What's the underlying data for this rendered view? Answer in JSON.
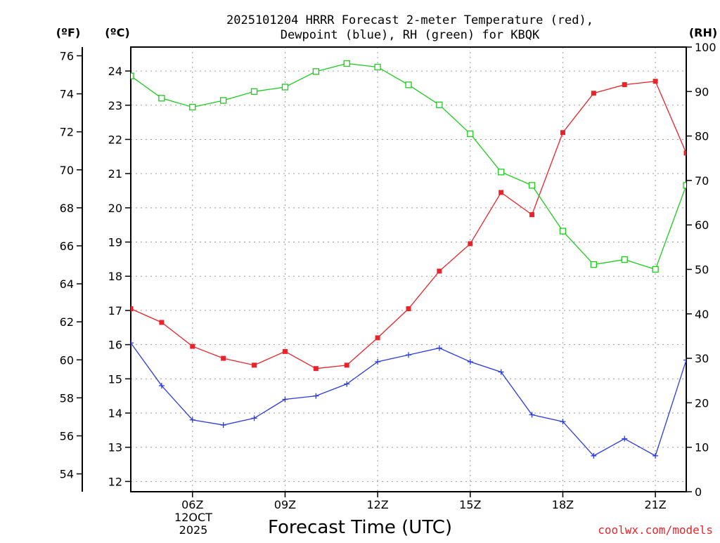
{
  "chart_data": {
    "type": "line",
    "title_line1": "2025101204 HRRR Forecast 2-meter Temperature (red),",
    "title_line2": "Dewpoint (blue), RH (green) for KBQK",
    "units": {
      "fahrenheit": "(ºF)",
      "celsius": "(ºC)",
      "rh": "(RH)"
    },
    "xlabel": "Forecast Time (UTC)",
    "date_label_line1": "12OCT",
    "date_label_line2": "2025",
    "credit": "coolwx.com/models",
    "x_hours": [
      4,
      5,
      6,
      7,
      8,
      9,
      10,
      11,
      12,
      13,
      14,
      15,
      16,
      17,
      18,
      19,
      20,
      21,
      22
    ],
    "xlim": [
      4,
      22
    ],
    "x_ticks": [
      {
        "hour": 6,
        "label": "06Z"
      },
      {
        "hour": 9,
        "label": "09Z"
      },
      {
        "hour": 12,
        "label": "12Z"
      },
      {
        "hour": 15,
        "label": "15Z"
      },
      {
        "hour": 18,
        "label": "18Z"
      },
      {
        "hour": 21,
        "label": "21Z"
      }
    ],
    "celsius_axis": {
      "min": 11.7,
      "max": 24.7,
      "ticks": [
        12,
        13,
        14,
        15,
        16,
        17,
        18,
        19,
        20,
        21,
        22,
        23,
        24
      ]
    },
    "fahrenheit_ticks": [
      54,
      56,
      58,
      60,
      62,
      64,
      66,
      68,
      70,
      72,
      74,
      76
    ],
    "rh_axis": {
      "min": 0,
      "max": 100,
      "ticks": [
        0,
        10,
        20,
        30,
        40,
        50,
        60,
        70,
        80,
        90,
        100
      ]
    },
    "grid": true,
    "series": [
      {
        "name": "Temperature",
        "color": "#e8242b",
        "marker": "filled-square",
        "axis": "celsius",
        "values": [
          17.05,
          16.65,
          15.95,
          15.6,
          15.4,
          15.8,
          15.3,
          15.4,
          16.2,
          17.05,
          18.15,
          18.95,
          20.45,
          19.8,
          22.2,
          23.35,
          23.6,
          23.7,
          21.6
        ]
      },
      {
        "name": "Dewpoint",
        "color": "#2b3cdf",
        "marker": "plus",
        "axis": "celsius",
        "values": [
          16.05,
          14.8,
          13.8,
          13.65,
          13.85,
          14.4,
          14.5,
          14.85,
          15.5,
          15.7,
          15.9,
          15.5,
          15.2,
          13.95,
          13.75,
          12.75,
          13.25,
          12.75,
          15.55
        ]
      },
      {
        "name": "Relative Humidity",
        "color": "#1bcc1b",
        "marker": "open-square",
        "axis": "rh",
        "values": [
          93.5,
          88.5,
          86.5,
          88,
          90,
          91,
          94.5,
          96.3,
          95.5,
          91.5,
          87,
          80.5,
          71.9,
          68.9,
          58.6,
          51.1,
          52.2,
          50,
          68.9
        ]
      }
    ]
  }
}
